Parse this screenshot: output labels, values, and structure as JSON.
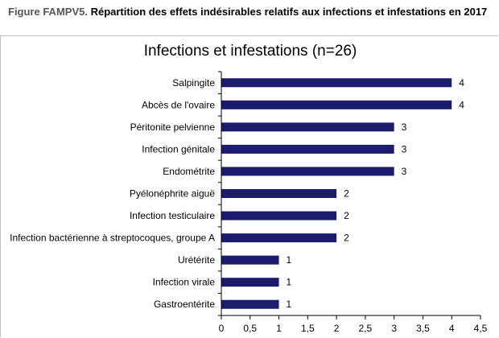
{
  "figure": {
    "label": "Figure FAMPV5.",
    "caption": " Répartition des effets indésirables relatifs aux infections et infestations en 2017"
  },
  "colors": {
    "bar": "#1c1c6c",
    "axis": "#000000",
    "frame": "#bfbfbf"
  },
  "chart_data": {
    "type": "bar",
    "orientation": "horizontal",
    "title": "Infections et infestations (n=26)",
    "categories": [
      "Salpingite",
      "Abcès de l'ovaire",
      "Péritonite pelvienne",
      "Infection génitale",
      "Endométrite",
      "Pyélonéphrite aiguë",
      "Infection testiculaire",
      "Infection bactérienne à streptocoques, groupe A",
      "Urétérite",
      "Infection virale",
      "Gastroentérite"
    ],
    "values": [
      4,
      4,
      3,
      3,
      3,
      2,
      2,
      2,
      1,
      1,
      1
    ],
    "data_labels": [
      "4",
      "4",
      "3",
      "3",
      "3",
      "2",
      "2",
      "2",
      "1",
      "1",
      "1"
    ],
    "xlim": [
      0,
      4.5
    ],
    "x_ticks": [
      0,
      0.5,
      1,
      1.5,
      2,
      2.5,
      3,
      3.5,
      4,
      4.5
    ],
    "x_tick_labels": [
      "0",
      "0,5",
      "1",
      "1,5",
      "2",
      "2,5",
      "3",
      "3,5",
      "4",
      "4,5"
    ],
    "grid": false,
    "legend": "none"
  }
}
